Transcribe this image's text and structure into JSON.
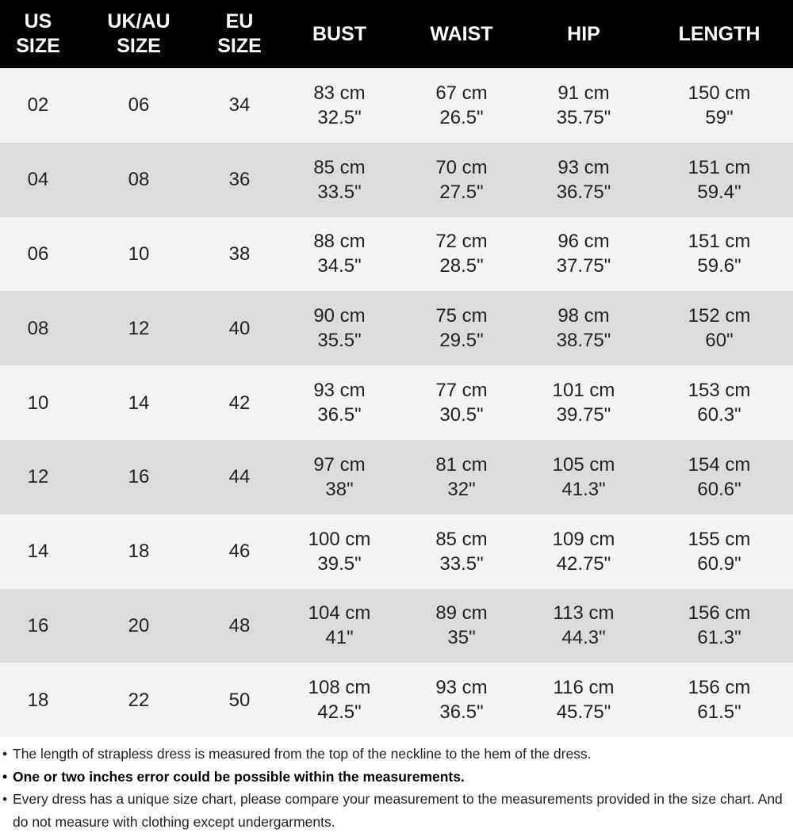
{
  "table": {
    "header": [
      [
        "US",
        "SIZE"
      ],
      [
        "UK/AU",
        "SIZE"
      ],
      [
        "EU",
        "SIZE"
      ],
      [
        "BUST"
      ],
      [
        "WAIST"
      ],
      [
        "HIP"
      ],
      [
        "LENGTH"
      ]
    ],
    "rows": [
      [
        "02",
        "06",
        "34",
        [
          "83 cm",
          "32.5\""
        ],
        [
          "67 cm",
          "26.5\""
        ],
        [
          "91 cm",
          "35.75\""
        ],
        [
          "150 cm",
          "59\""
        ]
      ],
      [
        "04",
        "08",
        "36",
        [
          "85 cm",
          "33.5\""
        ],
        [
          "70 cm",
          "27.5\""
        ],
        [
          "93 cm",
          "36.75\""
        ],
        [
          "151 cm",
          "59.4\""
        ]
      ],
      [
        "06",
        "10",
        "38",
        [
          "88 cm",
          "34.5\""
        ],
        [
          "72 cm",
          "28.5\""
        ],
        [
          "96 cm",
          "37.75\""
        ],
        [
          "151 cm",
          "59.6\""
        ]
      ],
      [
        "08",
        "12",
        "40",
        [
          "90 cm",
          "35.5\""
        ],
        [
          "75 cm",
          "29.5\""
        ],
        [
          "98 cm",
          "38.75\""
        ],
        [
          "152 cm",
          "60\""
        ]
      ],
      [
        "10",
        "14",
        "42",
        [
          "93 cm",
          "36.5\""
        ],
        [
          "77 cm",
          "30.5\""
        ],
        [
          "101 cm",
          "39.75\""
        ],
        [
          "153 cm",
          "60.3\""
        ]
      ],
      [
        "12",
        "16",
        "44",
        [
          "97 cm",
          "38\""
        ],
        [
          "81 cm",
          "32\""
        ],
        [
          "105 cm",
          "41.3\""
        ],
        [
          "154 cm",
          "60.6\""
        ]
      ],
      [
        "14",
        "18",
        "46",
        [
          "100 cm",
          "39.5\""
        ],
        [
          "85 cm",
          "33.5\""
        ],
        [
          "109 cm",
          "42.75\""
        ],
        [
          "155 cm",
          "60.9\""
        ]
      ],
      [
        "16",
        "20",
        "48",
        [
          "104 cm",
          "41\""
        ],
        [
          "89 cm",
          "35\""
        ],
        [
          "113 cm",
          "44.3\""
        ],
        [
          "156 cm",
          "61.3\""
        ]
      ],
      [
        "18",
        "22",
        "50",
        [
          "108 cm",
          "42.5\""
        ],
        [
          "93 cm",
          "36.5\""
        ],
        [
          "116 cm",
          "45.75\""
        ],
        [
          "156 cm",
          "61.5\""
        ]
      ]
    ]
  },
  "notes": [
    {
      "text": "The length of strapless dress is measured from the top of the neckline to the hem of the dress.",
      "bold": false
    },
    {
      "text": "One or two inches error could be possible within the measurements.",
      "bold": true
    },
    {
      "text": "Every dress has a unique size chart, please compare your measurement to the measurements provided in the size chart. And do not measure with clothing except undergarments.",
      "bold": false
    }
  ]
}
